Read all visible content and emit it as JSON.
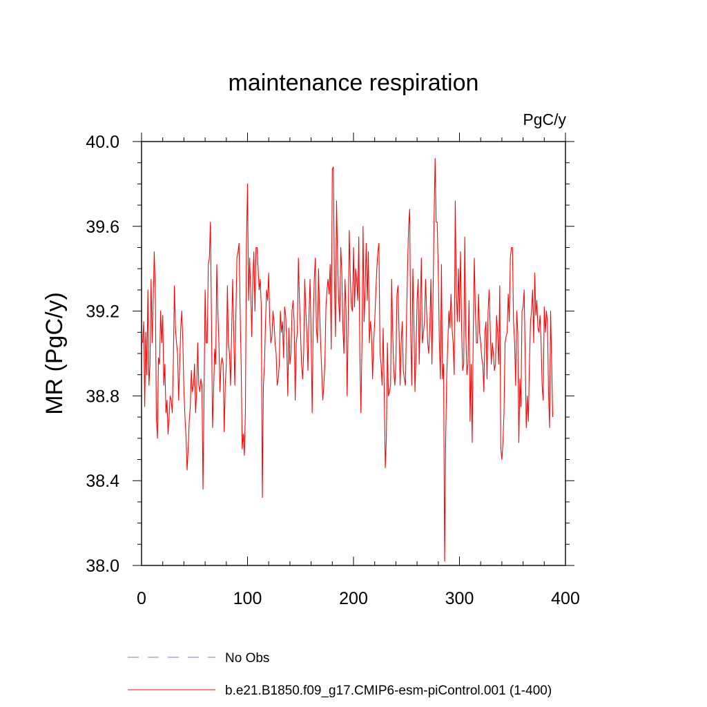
{
  "chart_data": {
    "type": "line",
    "title": "maintenance respiration",
    "units_label": "PgC/y",
    "xlabel": "",
    "ylabel": "MR  (PgC/y)",
    "xlim": [
      0,
      400
    ],
    "ylim": [
      38.0,
      40.0
    ],
    "x_ticks": [
      0,
      100,
      200,
      300,
      400
    ],
    "x_tick_labels": [
      "0",
      "100",
      "200",
      "300",
      "400"
    ],
    "y_ticks": [
      38.0,
      38.4,
      38.8,
      39.2,
      39.6,
      40.0
    ],
    "y_tick_labels": [
      "38.0",
      "38.4",
      "38.8",
      "39.2",
      "39.6",
      "40.0"
    ],
    "grid": false,
    "legend_position": "bottom",
    "series": [
      {
        "name": "No Obs",
        "color": "#7b7bd0",
        "style": "dashed",
        "values": []
      },
      {
        "name": "b.e21.B1850.f09_g17.CMIP6-esm-piControl.001 (1-400)",
        "color": "#ff0000",
        "style": "solid",
        "x_start": 1,
        "values": [
          39.05,
          39.15,
          38.75,
          39.1,
          38.9,
          39.3,
          38.85,
          38.95,
          39.35,
          39.05,
          39.25,
          39.48,
          39.3,
          38.7,
          38.6,
          38.98,
          38.95,
          39.2,
          39.05,
          39.18,
          38.85,
          38.95,
          38.72,
          38.78,
          38.62,
          38.7,
          38.8,
          38.78,
          38.72,
          38.95,
          39.32,
          39.12,
          39.05,
          39.0,
          38.78,
          38.95,
          39.12,
          39.2,
          39.05,
          38.82,
          38.7,
          38.6,
          38.45,
          38.55,
          38.68,
          38.75,
          38.92,
          38.82,
          38.85,
          38.95,
          38.72,
          38.82,
          39.05,
          38.85,
          38.82,
          38.88,
          38.85,
          38.36,
          38.82,
          39.3,
          39.05,
          39.05,
          39.42,
          39.45,
          39.62,
          39.15,
          38.65,
          38.82,
          39.02,
          38.95,
          39.42,
          39.2,
          39.05,
          38.82,
          38.95,
          38.98,
          38.95,
          38.63,
          38.85,
          38.95,
          39.32,
          39.05,
          39.0,
          38.85,
          39.1,
          39.35,
          39.1,
          38.85,
          39.18,
          39.45,
          39.48,
          39.52,
          39.22,
          38.95,
          38.55,
          38.62,
          38.52,
          38.72,
          39.52,
          39.8,
          39.25,
          39.45,
          39.3,
          39.08,
          39.35,
          39.48,
          39.2,
          39.5,
          39.5,
          39.4,
          39.3,
          39.35,
          39.22,
          38.32,
          38.85,
          38.95,
          39.15,
          39.3,
          39.25,
          39.38,
          39.15,
          39.05,
          39.08,
          39.2,
          39.15,
          39.05,
          39.0,
          38.85,
          38.88,
          38.95,
          39.2,
          39.1,
          39.15,
          38.98,
          39.22,
          39.18,
          39.05,
          38.8,
          39.12,
          38.95,
          39.0,
          39.2,
          39.25,
          39.15,
          38.78,
          39.05,
          39.1,
          39.45,
          39.25,
          39.1,
          38.95,
          38.88,
          39.0,
          39.35,
          39.2,
          39.1,
          38.92,
          39.18,
          39.35,
          39.08,
          38.72,
          39.15,
          39.35,
          39.45,
          39.12,
          39.05,
          39.4,
          39.2,
          39.05,
          38.92,
          38.78,
          38.85,
          38.95,
          39.22,
          39.3,
          39.35,
          39.28,
          39.42,
          39.02,
          39.87,
          39.88,
          39.35,
          39.08,
          39.72,
          39.45,
          39.25,
          39.15,
          39.5,
          39.38,
          39.12,
          39.0,
          39.35,
          39.2,
          38.8,
          39.15,
          39.58,
          39.35,
          39.22,
          39.2,
          39.5,
          39.22,
          39.4,
          39.35,
          39.25,
          39.55,
          39.0,
          38.72,
          39.05,
          39.6,
          39.15,
          39.3,
          39.52,
          39.25,
          39.48,
          39.05,
          39.15,
          39.1,
          38.88,
          39.05,
          39.15,
          39.28,
          39.4,
          39.48,
          39.52,
          39.0,
          38.95,
          38.85,
          39.12,
          38.82,
          38.46,
          38.6,
          39.05,
          38.8,
          38.82,
          38.85,
          39.35,
          39.1,
          38.92,
          38.85,
          38.95,
          39.28,
          39.32,
          39.1,
          38.85,
          39.05,
          39.15,
          38.92,
          38.88,
          38.85,
          39.15,
          39.4,
          39.6,
          39.68,
          39.1,
          38.85,
          39.4,
          39.15,
          38.82,
          39.0,
          39.25,
          39.35,
          38.95,
          39.18,
          39.45,
          39.05,
          39.1,
          39.15,
          39.35,
          39.2,
          39.05,
          39.0,
          39.12,
          39.35,
          38.95,
          39.25,
          39.62,
          39.92,
          39.62,
          39.62,
          39.38,
          39.05,
          38.88,
          39.42,
          38.88,
          38.95,
          38.02,
          38.6,
          38.9,
          39.05,
          39.2,
          39.12,
          39.28,
          39.12,
          39.05,
          38.9,
          39.72,
          39.3,
          39.15,
          39.4,
          39.15,
          39.48,
          39.12,
          38.92,
          38.95,
          39.55,
          39.1,
          38.9,
          38.95,
          39.25,
          38.68,
          38.95,
          38.58,
          39.1,
          39.45,
          39.2,
          39.05,
          39.05,
          39.28,
          39.1,
          39.05,
          38.98,
          38.95,
          38.82,
          39.1,
          39.15,
          38.88,
          39.2,
          39.3,
          39.12,
          38.95,
          39.05,
          39.0,
          38.92,
          38.95,
          39.18,
          39.1,
          38.95,
          39.32,
          38.55,
          38.5,
          38.58,
          38.72,
          39.05,
          39.08,
          39.1,
          39.28,
          39.15,
          39.45,
          39.5,
          39.5,
          39.15,
          39.05,
          38.85,
          39.2,
          39.1,
          38.58,
          38.88,
          38.75,
          39.2,
          39.22,
          39.3,
          39.0,
          38.65,
          38.8,
          38.68,
          38.95,
          39.15,
          39.2,
          39.3,
          39.05,
          39.38,
          39.18,
          39.25,
          39.12,
          39.1,
          39.18,
          39.05,
          38.85,
          38.78,
          39.22,
          39.1,
          39.2,
          39.15,
          38.82,
          38.65,
          39.2,
          38.95,
          38.7
        ]
      }
    ]
  },
  "colors": {
    "model_line": "#ff0000",
    "obs_line": "#7b7bd0",
    "axes": "#000000"
  }
}
